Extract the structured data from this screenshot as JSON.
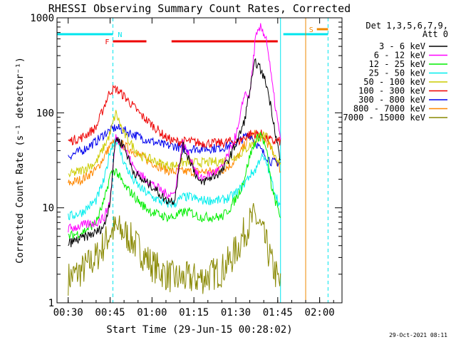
{
  "chart_data": {
    "type": "line",
    "title": "RHESSI Observing Summary Count Rates, Corrected",
    "xlabel": "Start Time (29-Jun-15 00:28:02)",
    "ylabel": "Corrected Count Rate (s⁻¹ detector⁻¹)",
    "y_scale": "log",
    "xlim": [
      "00:26",
      "02:08"
    ],
    "ylim": [
      1,
      1000
    ],
    "x_ticks": [
      "00:30",
      "00:45",
      "01:00",
      "01:15",
      "01:30",
      "01:45",
      "02:00"
    ],
    "y_ticks": [
      {
        "value": 1,
        "label": "1"
      },
      {
        "value": 10,
        "label": "10"
      },
      {
        "value": 100,
        "label": "100"
      },
      {
        "value": 1000,
        "label": "1000"
      }
    ],
    "grid": false,
    "legend_position": "right",
    "legend_header": [
      "Det 1,3,5,6,7,9,",
      "Att 0"
    ],
    "footer_date": "29-Oct-2021 08:11",
    "flags": [
      {
        "label": "N",
        "color": "#00e5ee",
        "segments": [
          [
            "00:26",
            "00:46"
          ],
          [
            "01:47",
            "02:03"
          ]
        ]
      },
      {
        "label": "F",
        "color": "#ee0000",
        "segments": [
          [
            "00:46",
            "00:58"
          ],
          [
            "01:07",
            "01:45"
          ]
        ]
      },
      {
        "label": "S",
        "color": "#ee8800",
        "segments": [
          [
            "01:59",
            "02:03"
          ]
        ]
      }
    ],
    "vlines": [
      {
        "time": "00:46",
        "color": "#00e5ee",
        "dashed": true
      },
      {
        "time": "01:46",
        "color": "#00e5ee",
        "dashed": false
      },
      {
        "time": "01:55",
        "color": "#ee8800",
        "dashed": false
      },
      {
        "time": "02:03",
        "color": "#00e5ee",
        "dashed": true
      }
    ],
    "x": [
      "00:30",
      "00:35",
      "00:40",
      "00:43",
      "00:45",
      "00:47",
      "00:50",
      "00:53",
      "00:56",
      "01:00",
      "01:05",
      "01:08",
      "01:11",
      "01:14",
      "01:17",
      "01:20",
      "01:25",
      "01:28",
      "01:31",
      "01:33",
      "01:35",
      "01:37",
      "01:39",
      "01:41",
      "01:43",
      "01:46"
    ],
    "series": [
      {
        "name": "3 - 6 keV",
        "color": "#000000",
        "values": [
          4.2,
          4.8,
          5.5,
          6.5,
          12,
          55,
          45,
          25,
          20,
          17,
          12,
          12,
          45,
          30,
          18,
          20,
          24,
          35,
          55,
          80,
          170,
          350,
          280,
          200,
          100,
          30
        ]
      },
      {
        "name": "6 - 12 keV",
        "color": "#ff00ff",
        "values": [
          6,
          6.5,
          7,
          8,
          12,
          55,
          45,
          28,
          22,
          18,
          14,
          14,
          48,
          32,
          20,
          22,
          26,
          40,
          70,
          160,
          150,
          600,
          800,
          600,
          200,
          50
        ]
      },
      {
        "name": "12 - 25 keV",
        "color": "#00ee00",
        "values": [
          5,
          5.5,
          7,
          12,
          22,
          25,
          17,
          14,
          11,
          9,
          8,
          8,
          9,
          9,
          8,
          8,
          8,
          10,
          14,
          20,
          35,
          50,
          60,
          40,
          15,
          8
        ]
      },
      {
        "name": "25 - 50 keV",
        "color": "#00eeee",
        "values": [
          8,
          9,
          12,
          20,
          40,
          55,
          30,
          20,
          16,
          13,
          11,
          11,
          13,
          13,
          12,
          12,
          12,
          13,
          15,
          18,
          22,
          25,
          35,
          30,
          18,
          10
        ]
      },
      {
        "name": "50 - 100 keV",
        "color": "#cccc00",
        "values": [
          22,
          25,
          30,
          45,
          60,
          100,
          60,
          45,
          35,
          32,
          28,
          28,
          30,
          30,
          30,
          30,
          31,
          33,
          36,
          40,
          45,
          50,
          60,
          55,
          40,
          30
        ]
      },
      {
        "name": "100 - 300 keV",
        "color": "#ee0000",
        "values": [
          50,
          55,
          70,
          120,
          170,
          180,
          150,
          120,
          95,
          75,
          55,
          50,
          50,
          50,
          48,
          48,
          48,
          50,
          50,
          55,
          60,
          60,
          60,
          55,
          50,
          50
        ]
      },
      {
        "name": "300 - 800 keV",
        "color": "#0000ee",
        "values": [
          35,
          40,
          50,
          60,
          65,
          70,
          65,
          60,
          55,
          50,
          45,
          45,
          42,
          42,
          42,
          42,
          43,
          45,
          50,
          55,
          60,
          50,
          40,
          35,
          30,
          30
        ]
      },
      {
        "name": "800 - 7000 keV",
        "color": "#ff8800",
        "values": [
          18,
          20,
          25,
          35,
          45,
          50,
          45,
          40,
          35,
          30,
          25,
          24,
          24,
          24,
          24,
          24,
          25,
          28,
          35,
          45,
          55,
          60,
          55,
          50,
          40,
          25
        ]
      },
      {
        "name": "7000 - 15000 keV",
        "color": "#888800",
        "values": [
          1.8,
          2.2,
          3,
          4.2,
          5.5,
          6,
          5.5,
          4.5,
          3.5,
          2.5,
          2,
          1.8,
          1.8,
          1.8,
          1.8,
          1.9,
          2.2,
          2.8,
          4,
          5.5,
          7,
          8,
          6,
          4,
          2.5,
          1.5
        ]
      }
    ]
  }
}
